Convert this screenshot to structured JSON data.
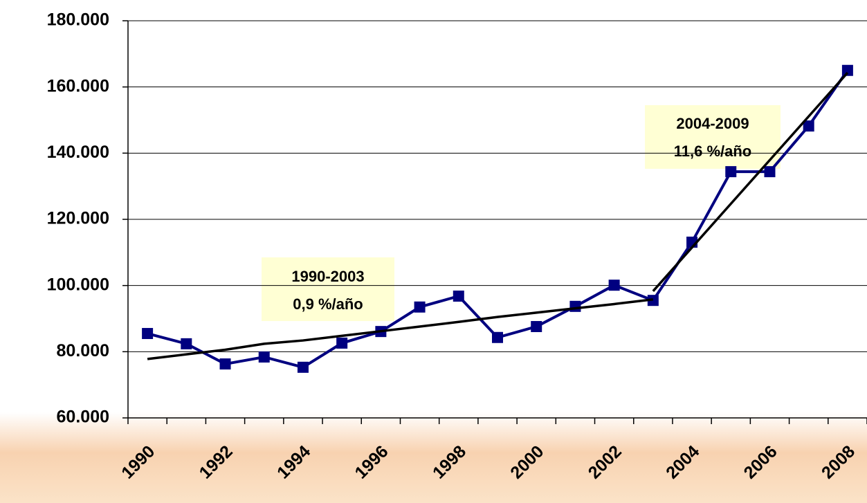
{
  "chart_data": {
    "type": "line",
    "categories": [
      "1990",
      null,
      "1992",
      null,
      "1994",
      null,
      "1996",
      null,
      "1998",
      null,
      "2000",
      null,
      "2002",
      null,
      "2004",
      null,
      "2006",
      null,
      "2008"
    ],
    "series": [
      {
        "color": "#000080",
        "values": [
          85500,
          82400,
          76300,
          78400,
          75300,
          82600,
          86100,
          93500,
          96800,
          84300,
          87600,
          93700,
          100100,
          95500,
          113100,
          134400,
          134400,
          148200,
          165000
        ]
      },
      {
        "color": "#000000",
        "values": [
          77800,
          79200,
          80600,
          82400,
          83400,
          84800,
          86200,
          87600,
          89000,
          90500,
          91800,
          93100,
          94400,
          95800,
          null,
          null,
          null,
          null,
          null
        ]
      },
      {
        "color": "#000000",
        "values": [
          null,
          null,
          null,
          null,
          null,
          null,
          null,
          null,
          null,
          null,
          null,
          null,
          null,
          98300,
          111500,
          124700,
          137900,
          151100,
          164300
        ]
      }
    ],
    "ylim": [
      60000,
      180000
    ],
    "yticks": [
      {
        "value": 60000,
        "label": "60.000"
      },
      {
        "value": 80000,
        "label": "80.000"
      },
      {
        "value": 100000,
        "label": "100.000"
      },
      {
        "value": 120000,
        "label": "120.000"
      },
      {
        "value": 140000,
        "label": "140.000"
      },
      {
        "value": 160000,
        "label": "160.000"
      },
      {
        "value": 180000,
        "label": "180.000"
      }
    ],
    "grid": true,
    "annotations": [
      {
        "lines": [
          "1990-2003",
          "0,9 %/año"
        ]
      },
      {
        "lines": [
          "2004-2009",
          "11,6 %/año"
        ]
      }
    ]
  }
}
